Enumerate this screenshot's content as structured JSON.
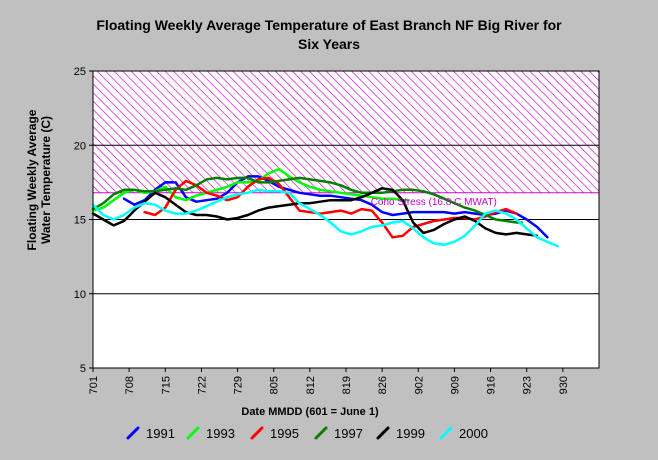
{
  "chart_data": {
    "type": "line",
    "title_line1": "Floating Weekly Average Temperature of East Branch NF Big River for",
    "title_line2": "Six Years",
    "xlabel": "Date MMDD (601 = June 1)",
    "ylabel_line1": "Floating Weekly Average",
    "ylabel_line2": "Water Temperature (C)",
    "ylim": [
      5,
      25
    ],
    "yticks": [
      5,
      10,
      15,
      20,
      25
    ],
    "x_tick_labels": [
      "701",
      "708",
      "715",
      "722",
      "729",
      "805",
      "812",
      "819",
      "826",
      "902",
      "909",
      "916",
      "923",
      "930"
    ],
    "x_tick_days": [
      0,
      7,
      14,
      21,
      28,
      35,
      42,
      49,
      56,
      63,
      70,
      77,
      84,
      91
    ],
    "xlim_days": [
      0,
      98
    ],
    "grid": "horizontal",
    "threshold": {
      "label": "Coho Stress (16.8 C MWAT)",
      "value": 16.8,
      "upper": 25,
      "color": "#cc00cc"
    },
    "legend_position": "bottom",
    "series": [
      {
        "name": "1991",
        "color": "#0000ff",
        "points": [
          [
            6,
            16.4
          ],
          [
            8,
            16.0
          ],
          [
            10,
            16.3
          ],
          [
            12,
            17.0
          ],
          [
            14,
            17.5
          ],
          [
            16,
            17.5
          ],
          [
            18,
            16.5
          ],
          [
            20,
            16.2
          ],
          [
            22,
            16.3
          ],
          [
            24,
            16.4
          ],
          [
            26,
            16.8
          ],
          [
            28,
            17.5
          ],
          [
            30,
            17.9
          ],
          [
            32,
            17.9
          ],
          [
            34,
            17.6
          ],
          [
            36,
            17.2
          ],
          [
            38,
            17.0
          ],
          [
            40,
            16.8
          ],
          [
            42,
            16.7
          ],
          [
            44,
            16.6
          ],
          [
            46,
            16.6
          ],
          [
            48,
            16.5
          ],
          [
            50,
            16.4
          ],
          [
            52,
            16.3
          ],
          [
            54,
            16.0
          ],
          [
            56,
            15.5
          ],
          [
            58,
            15.3
          ],
          [
            60,
            15.4
          ],
          [
            62,
            15.5
          ],
          [
            64,
            15.5
          ],
          [
            66,
            15.5
          ],
          [
            68,
            15.5
          ],
          [
            70,
            15.4
          ],
          [
            72,
            15.5
          ],
          [
            74,
            15.4
          ],
          [
            76,
            15.3
          ],
          [
            78,
            15.4
          ],
          [
            80,
            15.6
          ],
          [
            82,
            15.4
          ],
          [
            84,
            15.0
          ],
          [
            86,
            14.5
          ],
          [
            88,
            13.8
          ]
        ]
      },
      {
        "name": "1993",
        "color": "#00ff00",
        "points": [
          [
            0,
            15.6
          ],
          [
            2,
            15.8
          ],
          [
            4,
            16.3
          ],
          [
            6,
            16.8
          ],
          [
            8,
            17.0
          ],
          [
            10,
            16.8
          ],
          [
            12,
            16.9
          ],
          [
            14,
            17.2
          ],
          [
            16,
            16.5
          ],
          [
            18,
            16.3
          ],
          [
            20,
            16.6
          ],
          [
            22,
            16.8
          ],
          [
            24,
            17.0
          ],
          [
            26,
            17.2
          ],
          [
            28,
            17.5
          ],
          [
            30,
            17.5
          ],
          [
            32,
            17.6
          ],
          [
            34,
            18.1
          ],
          [
            36,
            18.4
          ],
          [
            38,
            17.9
          ],
          [
            40,
            17.5
          ],
          [
            42,
            17.2
          ],
          [
            44,
            17.0
          ],
          [
            46,
            16.9
          ],
          [
            48,
            16.8
          ],
          [
            50,
            16.7
          ],
          [
            52,
            16.6
          ],
          [
            54,
            16.5
          ],
          [
            56,
            16.4
          ],
          [
            58,
            16.4
          ],
          [
            60,
            16.3
          ],
          [
            61,
            16.3
          ]
        ]
      },
      {
        "name": "1995",
        "color": "#ff0000",
        "points": [
          [
            10,
            15.5
          ],
          [
            12,
            15.3
          ],
          [
            14,
            15.8
          ],
          [
            16,
            17.0
          ],
          [
            18,
            17.6
          ],
          [
            20,
            17.3
          ],
          [
            22,
            16.8
          ],
          [
            24,
            16.6
          ],
          [
            26,
            16.3
          ],
          [
            28,
            16.5
          ],
          [
            30,
            17.2
          ],
          [
            32,
            17.7
          ],
          [
            34,
            17.8
          ],
          [
            36,
            17.4
          ],
          [
            38,
            16.5
          ],
          [
            40,
            15.6
          ],
          [
            42,
            15.5
          ],
          [
            44,
            15.4
          ],
          [
            46,
            15.5
          ],
          [
            48,
            15.6
          ],
          [
            50,
            15.4
          ],
          [
            52,
            15.7
          ],
          [
            54,
            15.6
          ],
          [
            56,
            14.8
          ],
          [
            58,
            13.8
          ],
          [
            60,
            13.9
          ],
          [
            62,
            14.5
          ],
          [
            64,
            14.7
          ],
          [
            66,
            14.9
          ],
          [
            68,
            15.0
          ],
          [
            70,
            15.1
          ],
          [
            72,
            15.1
          ],
          [
            74,
            15.0
          ],
          [
            76,
            15.2
          ],
          [
            78,
            15.5
          ],
          [
            80,
            15.7
          ],
          [
            82,
            15.4
          ]
        ]
      },
      {
        "name": "1997",
        "color": "#007f00",
        "points": [
          [
            0,
            15.7
          ],
          [
            2,
            16.1
          ],
          [
            4,
            16.7
          ],
          [
            6,
            17.0
          ],
          [
            8,
            17.0
          ],
          [
            10,
            16.9
          ],
          [
            12,
            16.9
          ],
          [
            14,
            17.0
          ],
          [
            16,
            17.1
          ],
          [
            18,
            17.0
          ],
          [
            20,
            17.3
          ],
          [
            22,
            17.7
          ],
          [
            24,
            17.8
          ],
          [
            26,
            17.7
          ],
          [
            28,
            17.8
          ],
          [
            30,
            17.8
          ],
          [
            32,
            17.5
          ],
          [
            34,
            17.5
          ],
          [
            36,
            17.6
          ],
          [
            38,
            17.7
          ],
          [
            40,
            17.8
          ],
          [
            42,
            17.7
          ],
          [
            44,
            17.6
          ],
          [
            46,
            17.5
          ],
          [
            48,
            17.3
          ],
          [
            50,
            17.0
          ],
          [
            52,
            16.8
          ],
          [
            54,
            16.8
          ],
          [
            56,
            16.8
          ],
          [
            58,
            16.9
          ],
          [
            60,
            17.0
          ],
          [
            62,
            17.0
          ],
          [
            64,
            16.9
          ],
          [
            66,
            16.7
          ],
          [
            68,
            16.4
          ],
          [
            70,
            16.1
          ],
          [
            72,
            15.8
          ],
          [
            74,
            15.6
          ],
          [
            76,
            15.3
          ],
          [
            78,
            15.0
          ],
          [
            80,
            14.9
          ],
          [
            82,
            14.8
          ],
          [
            83,
            14.8
          ]
        ]
      },
      {
        "name": "1999",
        "color": "#000000",
        "points": [
          [
            0,
            15.4
          ],
          [
            2,
            15.0
          ],
          [
            4,
            14.6
          ],
          [
            6,
            14.9
          ],
          [
            8,
            15.6
          ],
          [
            10,
            16.2
          ],
          [
            12,
            16.8
          ],
          [
            14,
            16.5
          ],
          [
            16,
            16.0
          ],
          [
            18,
            15.5
          ],
          [
            20,
            15.3
          ],
          [
            22,
            15.3
          ],
          [
            24,
            15.2
          ],
          [
            26,
            15.0
          ],
          [
            28,
            15.1
          ],
          [
            30,
            15.3
          ],
          [
            32,
            15.6
          ],
          [
            34,
            15.8
          ],
          [
            36,
            15.9
          ],
          [
            38,
            16.0
          ],
          [
            40,
            16.1
          ],
          [
            42,
            16.1
          ],
          [
            44,
            16.2
          ],
          [
            46,
            16.3
          ],
          [
            48,
            16.3
          ],
          [
            50,
            16.3
          ],
          [
            52,
            16.5
          ],
          [
            54,
            16.8
          ],
          [
            56,
            17.1
          ],
          [
            58,
            17.0
          ],
          [
            60,
            16.3
          ],
          [
            62,
            14.8
          ],
          [
            64,
            14.1
          ],
          [
            66,
            14.3
          ],
          [
            68,
            14.7
          ],
          [
            70,
            15.0
          ],
          [
            72,
            15.2
          ],
          [
            74,
            14.9
          ],
          [
            76,
            14.4
          ],
          [
            78,
            14.1
          ],
          [
            80,
            14.0
          ],
          [
            82,
            14.1
          ],
          [
            84,
            14.0
          ],
          [
            86,
            13.9
          ]
        ]
      },
      {
        "name": "2000",
        "color": "#00ffff",
        "points": [
          [
            0,
            16.0
          ],
          [
            2,
            15.3
          ],
          [
            4,
            15.0
          ],
          [
            6,
            15.3
          ],
          [
            8,
            15.8
          ],
          [
            10,
            16.1
          ],
          [
            12,
            16.0
          ],
          [
            14,
            15.6
          ],
          [
            16,
            15.4
          ],
          [
            18,
            15.4
          ],
          [
            20,
            15.6
          ],
          [
            22,
            15.9
          ],
          [
            24,
            16.2
          ],
          [
            26,
            16.5
          ],
          [
            28,
            16.7
          ],
          [
            30,
            16.8
          ],
          [
            32,
            17.0
          ],
          [
            34,
            16.9
          ],
          [
            36,
            16.9
          ],
          [
            38,
            16.8
          ],
          [
            40,
            16.1
          ],
          [
            42,
            15.7
          ],
          [
            44,
            15.3
          ],
          [
            46,
            14.8
          ],
          [
            48,
            14.2
          ],
          [
            50,
            14.0
          ],
          [
            52,
            14.2
          ],
          [
            54,
            14.5
          ],
          [
            56,
            14.6
          ],
          [
            58,
            14.8
          ],
          [
            60,
            14.9
          ],
          [
            62,
            14.4
          ],
          [
            64,
            13.8
          ],
          [
            66,
            13.4
          ],
          [
            68,
            13.3
          ],
          [
            70,
            13.5
          ],
          [
            72,
            13.9
          ],
          [
            74,
            14.6
          ],
          [
            76,
            15.4
          ],
          [
            78,
            15.6
          ],
          [
            80,
            15.4
          ],
          [
            82,
            15.0
          ],
          [
            84,
            14.4
          ],
          [
            86,
            13.8
          ],
          [
            88,
            13.5
          ],
          [
            90,
            13.2
          ]
        ]
      }
    ]
  }
}
